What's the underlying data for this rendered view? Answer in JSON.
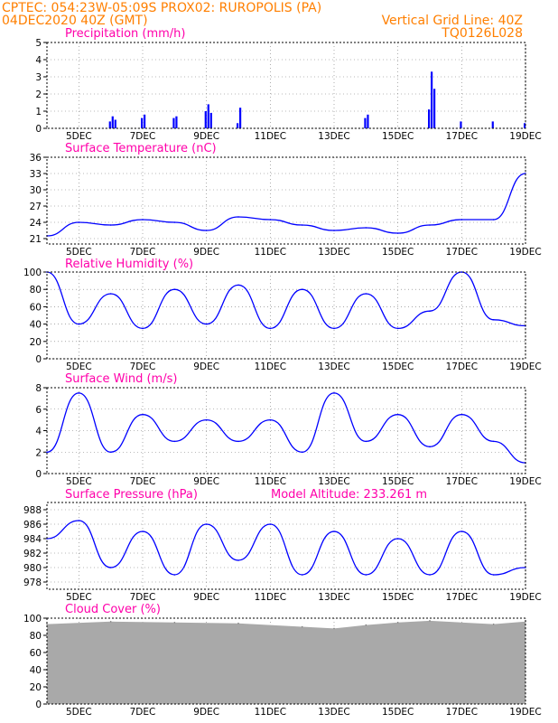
{
  "header": {
    "line1_left": "CPTEC:   054:23W-05:09S   PROX02: RUROPOLIS (PA)",
    "line2_left": "04DEC2020 40Z (GMT)",
    "line2_right": "Vertical Grid Line: 40Z",
    "line3_right": "TQ0126L028"
  },
  "colors": {
    "header": "#ff7f00",
    "title": "#ff00aa",
    "line": "#0000ff",
    "cloud": "#a9a9a9"
  },
  "x_labels": [
    "5DEC",
    "7DEC",
    "9DEC",
    "11DEC",
    "13DEC",
    "15DEC",
    "17DEC",
    "19DEC"
  ],
  "chart_data": [
    {
      "type": "bar",
      "title": "Precipitation (mm/h)",
      "ylim": [
        0,
        5
      ],
      "yticks": [
        0,
        1,
        2,
        3,
        4,
        5
      ],
      "x": [
        "6DEC",
        "6DEC",
        "6DEC",
        "7DEC",
        "7DEC",
        "8DEC",
        "8DEC",
        "9DEC",
        "9DEC",
        "9DEC",
        "10DEC",
        "10DEC",
        "14DEC",
        "14DEC",
        "16DEC",
        "16DEC",
        "16DEC",
        "17DEC",
        "18DEC",
        "19DEC"
      ],
      "values": [
        0.4,
        0.7,
        0.5,
        0.6,
        0.8,
        0.6,
        0.7,
        1.0,
        1.4,
        0.9,
        0.3,
        1.2,
        0.6,
        0.8,
        1.1,
        3.3,
        2.3,
        0.4,
        0.4,
        0.3
      ]
    },
    {
      "type": "line",
      "title": "Surface Temperature (nC)",
      "ylim": [
        20,
        36
      ],
      "yticks": [
        21,
        24,
        27,
        30,
        33,
        36
      ],
      "x": [
        "4DEC",
        "5DEC",
        "6DEC",
        "7DEC",
        "8DEC",
        "9DEC",
        "10DEC",
        "11DEC",
        "12DEC",
        "13DEC",
        "14DEC",
        "15DEC",
        "16DEC",
        "17DEC",
        "18DEC",
        "19DEC"
      ],
      "y": [
        21.5,
        24.0,
        23.5,
        24.5,
        24.0,
        22.5,
        25.0,
        24.5,
        23.5,
        22.5,
        23.0,
        22.0,
        23.5,
        24.5,
        24.5,
        33.0
      ]
    },
    {
      "type": "line",
      "title": "Relative Humidity (%)",
      "ylim": [
        0,
        100
      ],
      "yticks": [
        0,
        20,
        40,
        60,
        80,
        100
      ],
      "x": [
        "4DEC",
        "5DEC",
        "6DEC",
        "7DEC",
        "8DEC",
        "9DEC",
        "10DEC",
        "11DEC",
        "12DEC",
        "13DEC",
        "14DEC",
        "15DEC",
        "16DEC",
        "17DEC",
        "18DEC",
        "19DEC"
      ],
      "y": [
        100,
        40,
        75,
        35,
        80,
        40,
        85,
        35,
        80,
        35,
        75,
        35,
        55,
        100,
        45,
        38
      ]
    },
    {
      "type": "line",
      "title": "Surface Wind (m/s)",
      "ylim": [
        0,
        8
      ],
      "yticks": [
        0,
        2,
        4,
        6,
        8
      ],
      "x": [
        "4DEC",
        "5DEC",
        "6DEC",
        "7DEC",
        "8DEC",
        "9DEC",
        "10DEC",
        "11DEC",
        "12DEC",
        "13DEC",
        "14DEC",
        "15DEC",
        "16DEC",
        "17DEC",
        "18DEC",
        "19DEC"
      ],
      "y": [
        2.0,
        7.5,
        2.0,
        5.5,
        3.0,
        5.0,
        3.0,
        5.0,
        2.0,
        7.5,
        3.0,
        5.5,
        2.5,
        5.5,
        3.0,
        1.0
      ]
    },
    {
      "type": "line",
      "title": "Surface Pressure (hPa)",
      "ylim": [
        977,
        989
      ],
      "yticks": [
        978,
        980,
        982,
        984,
        986,
        988
      ],
      "annotation": "Model Altitude: 233.261  m",
      "x": [
        "4DEC",
        "5DEC",
        "6DEC",
        "7DEC",
        "8DEC",
        "9DEC",
        "10DEC",
        "11DEC",
        "12DEC",
        "13DEC",
        "14DEC",
        "15DEC",
        "16DEC",
        "17DEC",
        "18DEC",
        "19DEC"
      ],
      "y": [
        984,
        986.5,
        980,
        985,
        979,
        986,
        981,
        986,
        979,
        985,
        979,
        984,
        979,
        985,
        979,
        980
      ]
    },
    {
      "type": "area",
      "title": "Cloud Cover (%)",
      "ylim": [
        0,
        100
      ],
      "yticks": [
        0,
        20,
        40,
        60,
        80,
        100
      ],
      "x": [
        "4DEC",
        "6DEC",
        "8DEC",
        "10DEC",
        "12DEC",
        "13DEC",
        "14DEC",
        "15DEC",
        "16DEC",
        "18DEC",
        "19DEC"
      ],
      "y": [
        93,
        96,
        95,
        94,
        90,
        88,
        92,
        95,
        97,
        93,
        96
      ]
    }
  ]
}
